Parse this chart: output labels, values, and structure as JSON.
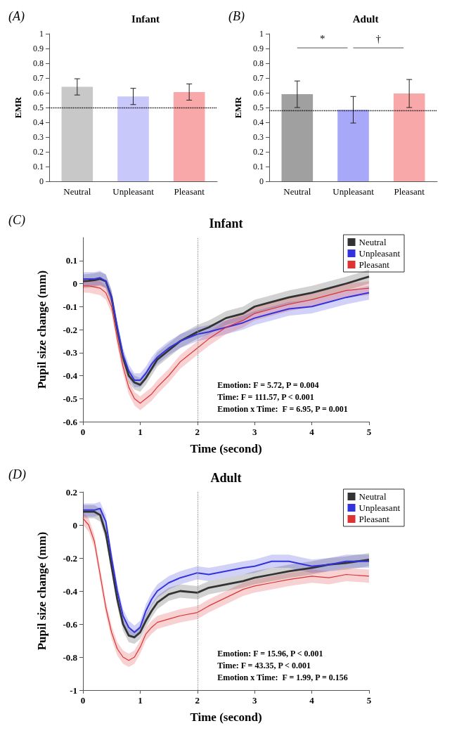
{
  "chart_data": [
    {
      "type": "bar",
      "title": "Infant",
      "ylabel": "EMR",
      "annotations": [
        "(A)"
      ],
      "categories": [
        "Neutral",
        "Unpleasant",
        "Pleasant"
      ],
      "values": [
        0.64,
        0.575,
        0.605
      ],
      "errors": [
        0.055,
        0.055,
        0.055
      ],
      "colors": [
        "#c8c8c8",
        "#c8c8fa",
        "#f8a8a8"
      ],
      "ylim": [
        0,
        1
      ],
      "yticks": [
        0,
        0.1,
        0.2,
        0.3,
        0.4,
        0.5,
        0.6,
        0.7,
        0.8,
        0.9,
        1
      ],
      "ref_lines": [
        {
          "axis": "y",
          "value": 0.5,
          "color": "#000000",
          "line_style": "dotted"
        }
      ],
      "grid": false,
      "legend": false
    },
    {
      "type": "bar",
      "title": "Adult",
      "ylabel": "EMR",
      "annotations": [
        "(B)",
        "*",
        "†"
      ],
      "categories": [
        "Neutral",
        "Unpleasant",
        "Pleasant"
      ],
      "values": [
        0.59,
        0.485,
        0.595
      ],
      "errors": [
        0.09,
        0.09,
        0.095
      ],
      "colors": [
        "#a0a0a0",
        "#a8a8f8",
        "#f8a8a8"
      ],
      "ylim": [
        0,
        1
      ],
      "yticks": [
        0,
        0.1,
        0.2,
        0.3,
        0.4,
        0.5,
        0.6,
        0.7,
        0.8,
        0.9,
        1
      ],
      "ref_lines": [
        {
          "axis": "y",
          "value": 0.485,
          "color": "#000000",
          "line_style": "dotted"
        }
      ],
      "grid": false,
      "legend": false
    },
    {
      "type": "line",
      "title": "Infant",
      "xlabel": "Time (second)",
      "ylabel": "Pupil size change (mm)",
      "annotations": [
        "(C)",
        "Emotion: F = 5.72, P = 0.004",
        "Time: F = 111.57, P < 0.001",
        "Emotion x Time:  F = 6.95, P = 0.001"
      ],
      "x": [
        0,
        0.1,
        0.2,
        0.3,
        0.4,
        0.5,
        0.6,
        0.7,
        0.8,
        0.9,
        1.0,
        1.1,
        1.2,
        1.3,
        1.5,
        1.7,
        2.0,
        2.2,
        2.5,
        2.8,
        3.0,
        3.3,
        3.6,
        4.0,
        4.3,
        4.6,
        5.0
      ],
      "xlim": [
        0,
        5
      ],
      "xticks": [
        0,
        1,
        2,
        3,
        4,
        5
      ],
      "ylim": [
        -0.6,
        0.2
      ],
      "yticks": [
        -0.6,
        -0.5,
        -0.4,
        -0.3,
        -0.2,
        -0.1,
        0,
        0.1
      ],
      "grid": false,
      "legend": "top right",
      "marker": "none",
      "line_style": "solid",
      "ref_lines": [
        {
          "axis": "x",
          "value": 2,
          "color": "#999999",
          "line_style": "dotted"
        }
      ],
      "series": [
        {
          "name": "Neutral",
          "color": "#333333",
          "values": [
            0.01,
            0.012,
            0.015,
            0.02,
            0.01,
            -0.06,
            -0.2,
            -0.32,
            -0.4,
            -0.43,
            -0.44,
            -0.41,
            -0.37,
            -0.33,
            -0.29,
            -0.25,
            -0.21,
            -0.19,
            -0.15,
            -0.13,
            -0.1,
            -0.08,
            -0.06,
            -0.04,
            -0.02,
            0.0,
            0.03
          ],
          "lower": [
            -0.02,
            -0.018,
            -0.015,
            -0.01,
            -0.02,
            -0.09,
            -0.23,
            -0.35,
            -0.43,
            -0.46,
            -0.47,
            -0.44,
            -0.4,
            -0.36,
            -0.32,
            -0.28,
            -0.24,
            -0.22,
            -0.18,
            -0.16,
            -0.13,
            -0.11,
            -0.09,
            -0.07,
            -0.05,
            -0.03,
            0.0
          ],
          "upper": [
            0.04,
            0.042,
            0.045,
            0.05,
            0.04,
            -0.03,
            -0.17,
            -0.29,
            -0.37,
            -0.4,
            -0.41,
            -0.38,
            -0.34,
            -0.3,
            -0.26,
            -0.22,
            -0.18,
            -0.16,
            -0.12,
            -0.1,
            -0.07,
            -0.05,
            -0.03,
            -0.01,
            0.01,
            0.03,
            0.06
          ]
        },
        {
          "name": "Unpleasant",
          "color": "#3333dd",
          "values": [
            0.02,
            0.02,
            0.02,
            0.025,
            0.01,
            -0.06,
            -0.19,
            -0.31,
            -0.38,
            -0.42,
            -0.42,
            -0.39,
            -0.35,
            -0.32,
            -0.28,
            -0.25,
            -0.22,
            -0.21,
            -0.19,
            -0.17,
            -0.15,
            -0.13,
            -0.11,
            -0.1,
            -0.08,
            -0.06,
            -0.04
          ],
          "lower": [
            -0.01,
            -0.01,
            -0.01,
            -0.005,
            -0.02,
            -0.09,
            -0.22,
            -0.34,
            -0.41,
            -0.45,
            -0.45,
            -0.42,
            -0.38,
            -0.35,
            -0.31,
            -0.28,
            -0.25,
            -0.24,
            -0.22,
            -0.2,
            -0.18,
            -0.16,
            -0.14,
            -0.13,
            -0.11,
            -0.09,
            -0.07
          ],
          "upper": [
            0.05,
            0.05,
            0.05,
            0.055,
            0.04,
            -0.03,
            -0.16,
            -0.28,
            -0.35,
            -0.39,
            -0.39,
            -0.36,
            -0.32,
            -0.29,
            -0.25,
            -0.22,
            -0.19,
            -0.18,
            -0.16,
            -0.14,
            -0.12,
            -0.1,
            -0.08,
            -0.07,
            -0.05,
            -0.03,
            -0.01
          ]
        },
        {
          "name": "Pleasant",
          "color": "#dd3333",
          "values": [
            -0.01,
            -0.01,
            -0.015,
            -0.02,
            -0.04,
            -0.1,
            -0.24,
            -0.36,
            -0.45,
            -0.5,
            -0.52,
            -0.5,
            -0.48,
            -0.45,
            -0.4,
            -0.34,
            -0.28,
            -0.24,
            -0.19,
            -0.16,
            -0.13,
            -0.11,
            -0.09,
            -0.07,
            -0.05,
            -0.03,
            -0.02
          ],
          "lower": [
            -0.04,
            -0.04,
            -0.045,
            -0.05,
            -0.07,
            -0.13,
            -0.27,
            -0.39,
            -0.48,
            -0.53,
            -0.55,
            -0.53,
            -0.51,
            -0.48,
            -0.43,
            -0.37,
            -0.31,
            -0.27,
            -0.22,
            -0.19,
            -0.16,
            -0.14,
            -0.12,
            -0.1,
            -0.08,
            -0.06,
            -0.05
          ],
          "upper": [
            0.02,
            0.02,
            0.015,
            0.01,
            -0.01,
            -0.07,
            -0.21,
            -0.33,
            -0.42,
            -0.47,
            -0.49,
            -0.47,
            -0.45,
            -0.42,
            -0.37,
            -0.31,
            -0.25,
            -0.21,
            -0.16,
            -0.13,
            -0.1,
            -0.08,
            -0.06,
            -0.04,
            -0.02,
            0.0,
            0.01
          ]
        }
      ]
    },
    {
      "type": "line",
      "title": "Adult",
      "xlabel": "Time (second)",
      "ylabel": "Pupil size change (mm)",
      "annotations": [
        "(D)",
        "Emotion: F = 15.96, P < 0.001",
        "Time: F = 43.35, P < 0.001",
        "Emotion x Time:  F = 1.99, P = 0.156"
      ],
      "x": [
        0,
        0.1,
        0.2,
        0.3,
        0.4,
        0.5,
        0.6,
        0.7,
        0.8,
        0.9,
        1.0,
        1.1,
        1.2,
        1.3,
        1.5,
        1.7,
        2.0,
        2.2,
        2.5,
        2.8,
        3.0,
        3.3,
        3.6,
        4.0,
        4.3,
        4.6,
        5.0
      ],
      "xlim": [
        0,
        5
      ],
      "xticks": [
        0,
        1,
        2,
        3,
        4,
        5
      ],
      "ylim": [
        -1,
        0.2
      ],
      "yticks": [
        -1,
        -0.8,
        -0.6,
        -0.4,
        -0.2,
        0,
        0.2
      ],
      "grid": false,
      "legend": "top right",
      "marker": "none",
      "line_style": "solid",
      "ref_lines": [
        {
          "axis": "x",
          "value": 2,
          "color": "#999999",
          "line_style": "dotted"
        }
      ],
      "series": [
        {
          "name": "Neutral",
          "color": "#333333",
          "values": [
            0.08,
            0.08,
            0.08,
            0.06,
            -0.05,
            -0.25,
            -0.45,
            -0.6,
            -0.67,
            -0.68,
            -0.65,
            -0.58,
            -0.52,
            -0.47,
            -0.42,
            -0.4,
            -0.41,
            -0.38,
            -0.36,
            -0.34,
            -0.32,
            -0.3,
            -0.28,
            -0.26,
            -0.24,
            -0.23,
            -0.21
          ],
          "lower": [
            0.04,
            0.04,
            0.04,
            0.02,
            -0.09,
            -0.29,
            -0.49,
            -0.64,
            -0.71,
            -0.72,
            -0.69,
            -0.62,
            -0.56,
            -0.51,
            -0.46,
            -0.44,
            -0.45,
            -0.42,
            -0.4,
            -0.38,
            -0.36,
            -0.34,
            -0.32,
            -0.3,
            -0.28,
            -0.27,
            -0.25
          ],
          "upper": [
            0.12,
            0.12,
            0.12,
            0.1,
            -0.01,
            -0.21,
            -0.41,
            -0.56,
            -0.63,
            -0.64,
            -0.61,
            -0.54,
            -0.48,
            -0.43,
            -0.38,
            -0.36,
            -0.37,
            -0.34,
            -0.32,
            -0.3,
            -0.28,
            -0.26,
            -0.24,
            -0.22,
            -0.2,
            -0.19,
            -0.17
          ]
        },
        {
          "name": "Unpleasant",
          "color": "#3333dd",
          "values": [
            0.09,
            0.09,
            0.09,
            0.1,
            0.02,
            -0.2,
            -0.4,
            -0.55,
            -0.62,
            -0.65,
            -0.62,
            -0.52,
            -0.45,
            -0.4,
            -0.35,
            -0.32,
            -0.29,
            -0.3,
            -0.28,
            -0.26,
            -0.25,
            -0.22,
            -0.22,
            -0.25,
            -0.24,
            -0.22,
            -0.22
          ],
          "lower": [
            0.05,
            0.05,
            0.05,
            0.06,
            -0.02,
            -0.24,
            -0.44,
            -0.59,
            -0.66,
            -0.69,
            -0.66,
            -0.56,
            -0.49,
            -0.44,
            -0.39,
            -0.36,
            -0.33,
            -0.34,
            -0.32,
            -0.3,
            -0.29,
            -0.26,
            -0.26,
            -0.29,
            -0.28,
            -0.26,
            -0.26
          ],
          "upper": [
            0.13,
            0.13,
            0.13,
            0.14,
            0.06,
            -0.16,
            -0.36,
            -0.51,
            -0.58,
            -0.61,
            -0.58,
            -0.48,
            -0.41,
            -0.36,
            -0.31,
            -0.28,
            -0.25,
            -0.26,
            -0.24,
            -0.22,
            -0.21,
            -0.18,
            -0.18,
            -0.21,
            -0.2,
            -0.18,
            -0.18
          ]
        },
        {
          "name": "Pleasant",
          "color": "#dd3333",
          "values": [
            0.04,
            0.0,
            -0.1,
            -0.3,
            -0.5,
            -0.65,
            -0.75,
            -0.8,
            -0.82,
            -0.8,
            -0.74,
            -0.66,
            -0.62,
            -0.59,
            -0.57,
            -0.55,
            -0.53,
            -0.49,
            -0.44,
            -0.39,
            -0.37,
            -0.35,
            -0.33,
            -0.31,
            -0.32,
            -0.3,
            -0.31
          ],
          "lower": [
            0.0,
            -0.04,
            -0.14,
            -0.34,
            -0.54,
            -0.69,
            -0.79,
            -0.84,
            -0.86,
            -0.84,
            -0.78,
            -0.7,
            -0.66,
            -0.63,
            -0.61,
            -0.59,
            -0.57,
            -0.53,
            -0.48,
            -0.43,
            -0.41,
            -0.39,
            -0.37,
            -0.35,
            -0.36,
            -0.34,
            -0.35
          ],
          "upper": [
            0.08,
            0.04,
            -0.06,
            -0.26,
            -0.46,
            -0.61,
            -0.71,
            -0.76,
            -0.78,
            -0.76,
            -0.7,
            -0.62,
            -0.58,
            -0.55,
            -0.53,
            -0.51,
            -0.49,
            -0.45,
            -0.4,
            -0.35,
            -0.33,
            -0.31,
            -0.29,
            -0.27,
            -0.28,
            -0.26,
            -0.27
          ]
        }
      ]
    }
  ]
}
